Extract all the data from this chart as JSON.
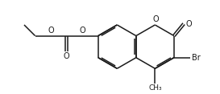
{
  "bg_color": "#ffffff",
  "line_color": "#1a1a1a",
  "line_width": 1.1,
  "font_size_label": 7.0,
  "figsize": [
    2.73,
    1.17
  ],
  "dpi": 100,
  "xlim": [
    0,
    10.5
  ],
  "ylim": [
    0.0,
    4.2
  ],
  "BL": 1.05
}
